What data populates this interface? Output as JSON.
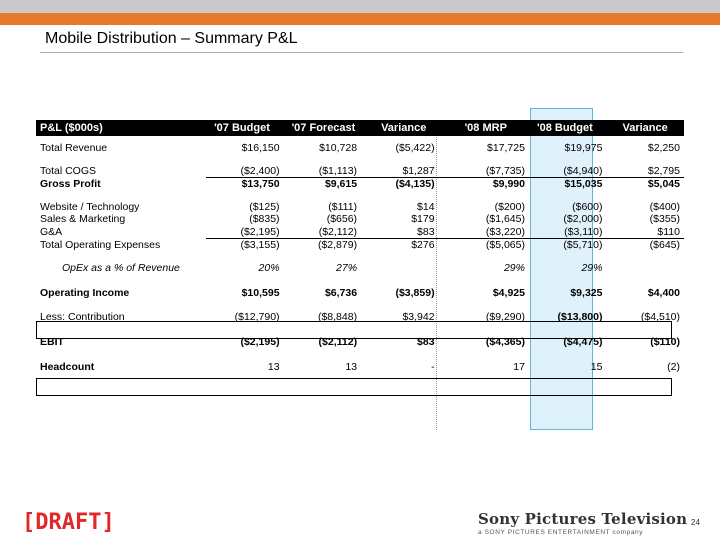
{
  "slide": {
    "title": "Mobile Distribution – Summary P&L",
    "draft_label": "[DRAFT]",
    "logo_main": "Sony Pictures Television",
    "logo_sub": "a SONY PICTURES ENTERTAINMENT company",
    "page_number": "24",
    "accent_color": "#e8792a",
    "highlight_color": "#5fb7df"
  },
  "table": {
    "headers": [
      "P&L ($000s)",
      "'07 Budget",
      "'07 Forecast",
      "Variance",
      "'08 MRP",
      "'08 Budget",
      "Variance"
    ],
    "rows": {
      "total_revenue": [
        "Total Revenue",
        "$16,150",
        "$10,728",
        "($5,422)",
        "$17,725",
        "$19,975",
        "$2,250"
      ],
      "total_cogs": [
        "Total COGS",
        "($2,400)",
        "($1,113)",
        "$1,287",
        "($7,735)",
        "($4,940)",
        "$2,795"
      ],
      "gross_profit": [
        "Gross Profit",
        "$13,750",
        "$9,615",
        "($4,135)",
        "$9,990",
        "$15,035",
        "$5,045"
      ],
      "website_tech": [
        "Website / Technology",
        "($125)",
        "($111)",
        "$14",
        "($200)",
        "($600)",
        "($400)"
      ],
      "sales_marketing": [
        "Sales & Marketing",
        "($835)",
        "($656)",
        "$179",
        "($1,645)",
        "($2,000)",
        "($355)"
      ],
      "ga": [
        "G&A",
        "($2,195)",
        "($2,112)",
        "$83",
        "($3,220)",
        "($3,110)",
        "$110"
      ],
      "total_opex": [
        "Total Operating Expenses",
        "($3,155)",
        "($2,879)",
        "$276",
        "($5,065)",
        "($5,710)",
        "($645)"
      ],
      "opex_pct": [
        "OpEx as a % of Revenue",
        "20%",
        "27%",
        "",
        "29%",
        "29%",
        ""
      ],
      "operating_income": [
        "Operating Income",
        "$10,595",
        "$6,736",
        "($3,859)",
        "$4,925",
        "$9,325",
        "$4,400"
      ],
      "contribution": [
        "Less:  Contribution",
        "($12,790)",
        "($8,848)",
        "$3,942",
        "($9,290)",
        "($13,800)",
        "($4,510)"
      ],
      "ebit": [
        "EBIT",
        "($2,195)",
        "($2,112)",
        "$83",
        "($4,365)",
        "($4,475)",
        "($110)"
      ],
      "headcount": [
        "Headcount",
        "13",
        "13",
        "-",
        "17",
        "15",
        "(2)"
      ]
    }
  }
}
